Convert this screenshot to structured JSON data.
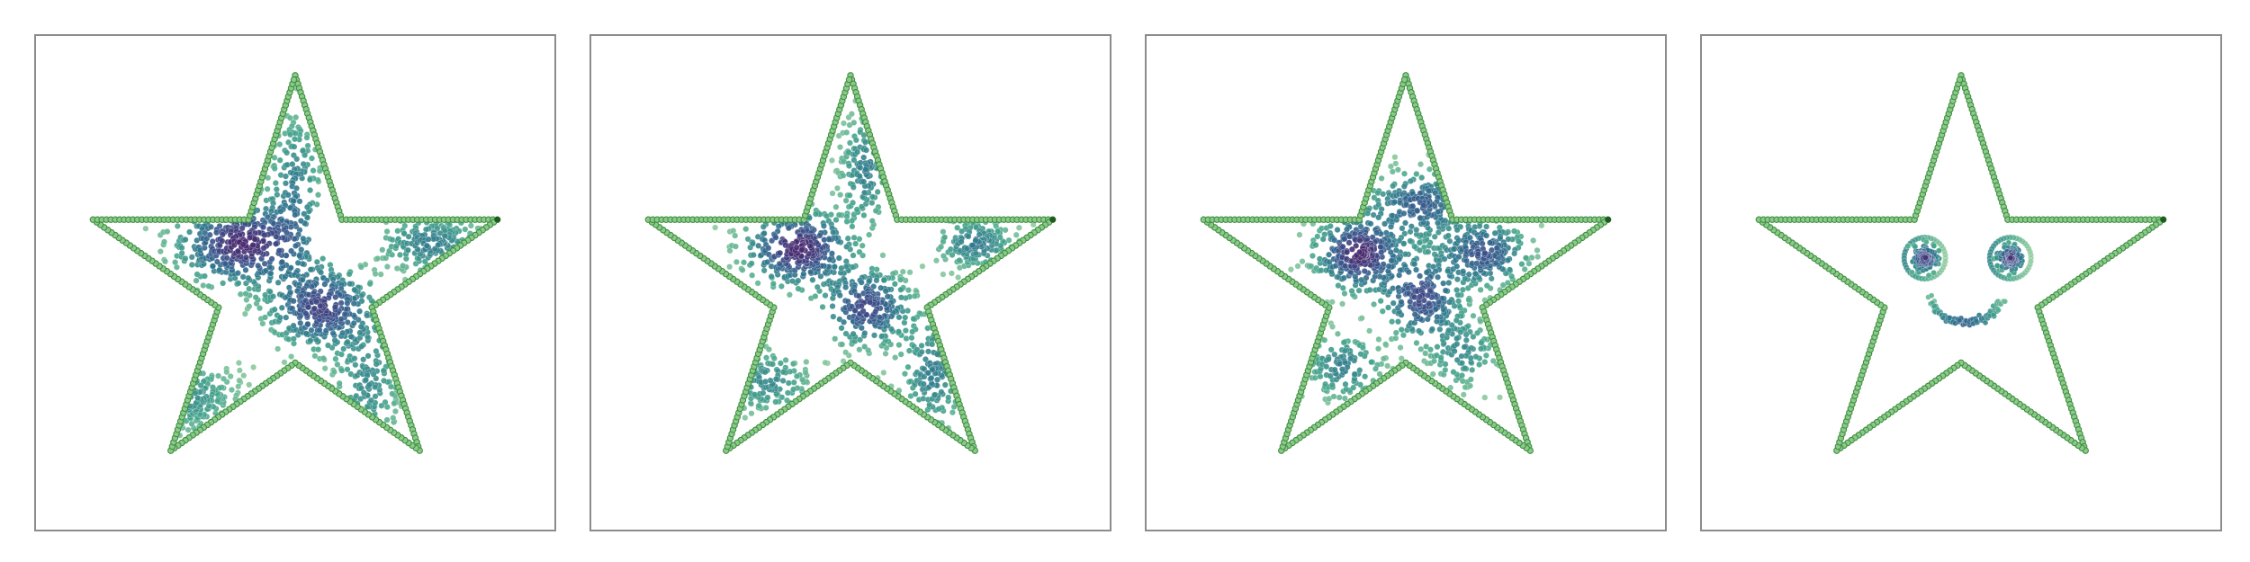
{
  "chart_data": [
    {
      "type": "scatter",
      "title": "",
      "xlabel": "",
      "ylabel": "",
      "xlim": [
        0,
        1
      ],
      "ylim": [
        0,
        1
      ],
      "grid": false,
      "boundary": {
        "shape": "star",
        "vertices": [
          [
            0.5,
            0.92
          ],
          [
            0.59,
            0.628
          ],
          [
            0.89,
            0.628
          ],
          [
            0.648,
            0.45
          ],
          [
            0.74,
            0.16
          ],
          [
            0.5,
            0.338
          ],
          [
            0.26,
            0.16
          ],
          [
            0.352,
            0.45
          ],
          [
            0.11,
            0.628
          ],
          [
            0.41,
            0.628
          ]
        ],
        "color": "#3f8f3f"
      },
      "clusters": [
        {
          "cx": 0.4,
          "cy": 0.58,
          "sx": 0.075,
          "sy": 0.05,
          "n": 380
        },
        {
          "cx": 0.55,
          "cy": 0.45,
          "sx": 0.06,
          "sy": 0.05,
          "n": 320
        },
        {
          "cx": 0.76,
          "cy": 0.58,
          "sx": 0.06,
          "sy": 0.035,
          "n": 170
        },
        {
          "cx": 0.29,
          "cy": 0.27,
          "sx": 0.06,
          "sy": 0.045,
          "n": 130
        },
        {
          "cx": 0.5,
          "cy": 0.7,
          "sx": 0.03,
          "sy": 0.09,
          "n": 160
        },
        {
          "cx": 0.64,
          "cy": 0.3,
          "sx": 0.04,
          "sy": 0.08,
          "n": 140
        }
      ],
      "empty_regions": [
        {
          "cx": 0.6,
          "cy": 0.61,
          "r": 0.075
        },
        {
          "cx": 0.33,
          "cy": 0.4,
          "r": 0.08
        }
      ]
    },
    {
      "type": "scatter",
      "title": "",
      "xlabel": "",
      "ylabel": "",
      "xlim": [
        0,
        1
      ],
      "ylim": [
        0,
        1
      ],
      "grid": false,
      "boundary": {
        "shape": "star",
        "vertices": [
          [
            0.5,
            0.92
          ],
          [
            0.59,
            0.628
          ],
          [
            0.89,
            0.628
          ],
          [
            0.648,
            0.45
          ],
          [
            0.74,
            0.16
          ],
          [
            0.5,
            0.338
          ],
          [
            0.26,
            0.16
          ],
          [
            0.352,
            0.45
          ],
          [
            0.11,
            0.628
          ],
          [
            0.41,
            0.628
          ]
        ],
        "color": "#3f8f3f"
      },
      "clusters": [
        {
          "cx": 0.4,
          "cy": 0.57,
          "sx": 0.06,
          "sy": 0.045,
          "n": 320
        },
        {
          "cx": 0.53,
          "cy": 0.45,
          "sx": 0.05,
          "sy": 0.045,
          "n": 260
        },
        {
          "cx": 0.74,
          "cy": 0.58,
          "sx": 0.045,
          "sy": 0.03,
          "n": 150
        },
        {
          "cx": 0.34,
          "cy": 0.3,
          "sx": 0.05,
          "sy": 0.04,
          "n": 120
        },
        {
          "cx": 0.53,
          "cy": 0.73,
          "sx": 0.03,
          "sy": 0.07,
          "n": 140
        },
        {
          "cx": 0.66,
          "cy": 0.32,
          "sx": 0.04,
          "sy": 0.07,
          "n": 140
        }
      ],
      "empty_regions": [
        {
          "cx": 0.61,
          "cy": 0.6,
          "r": 0.065
        },
        {
          "cx": 0.41,
          "cy": 0.4,
          "r": 0.06
        }
      ]
    },
    {
      "type": "scatter",
      "title": "",
      "xlabel": "",
      "ylabel": "",
      "xlim": [
        0,
        1
      ],
      "ylim": [
        0,
        1
      ],
      "grid": false,
      "boundary": {
        "shape": "star",
        "vertices": [
          [
            0.5,
            0.92
          ],
          [
            0.59,
            0.628
          ],
          [
            0.89,
            0.628
          ],
          [
            0.648,
            0.45
          ],
          [
            0.74,
            0.16
          ],
          [
            0.5,
            0.338
          ],
          [
            0.26,
            0.16
          ],
          [
            0.352,
            0.45
          ],
          [
            0.11,
            0.628
          ],
          [
            0.41,
            0.628
          ]
        ],
        "color": "#3f8f3f"
      },
      "clusters": [
        {
          "cx": 0.41,
          "cy": 0.56,
          "sx": 0.05,
          "sy": 0.045,
          "n": 300
        },
        {
          "cx": 0.53,
          "cy": 0.47,
          "sx": 0.045,
          "sy": 0.05,
          "n": 240
        },
        {
          "cx": 0.65,
          "cy": 0.56,
          "sx": 0.05,
          "sy": 0.04,
          "n": 220
        },
        {
          "cx": 0.53,
          "cy": 0.66,
          "sx": 0.06,
          "sy": 0.04,
          "n": 200
        },
        {
          "cx": 0.38,
          "cy": 0.33,
          "sx": 0.045,
          "sy": 0.04,
          "n": 130
        },
        {
          "cx": 0.61,
          "cy": 0.36,
          "sx": 0.04,
          "sy": 0.045,
          "n": 110
        }
      ],
      "empty_regions": []
    },
    {
      "type": "scatter",
      "title": "",
      "xlabel": "",
      "ylabel": "",
      "xlim": [
        0,
        1
      ],
      "ylim": [
        0,
        1
      ],
      "grid": false,
      "boundary": {
        "shape": "star",
        "vertices": [
          [
            0.5,
            0.92
          ],
          [
            0.59,
            0.628
          ],
          [
            0.89,
            0.628
          ],
          [
            0.648,
            0.45
          ],
          [
            0.74,
            0.16
          ],
          [
            0.5,
            0.338
          ],
          [
            0.26,
            0.16
          ],
          [
            0.352,
            0.45
          ],
          [
            0.11,
            0.628
          ],
          [
            0.41,
            0.628
          ]
        ],
        "color": "#3f8f3f"
      },
      "face": {
        "eyes": [
          {
            "cx": 0.43,
            "cy": 0.55,
            "ring_r": 0.042,
            "pupil_r": 0.025
          },
          {
            "cx": 0.595,
            "cy": 0.55,
            "ring_r": 0.042,
            "pupil_r": 0.025
          }
        ],
        "smile": {
          "cx": 0.51,
          "cy": 0.49,
          "rx": 0.075,
          "ry": 0.07,
          "start_deg": 200,
          "end_deg": 338
        }
      }
    }
  ]
}
